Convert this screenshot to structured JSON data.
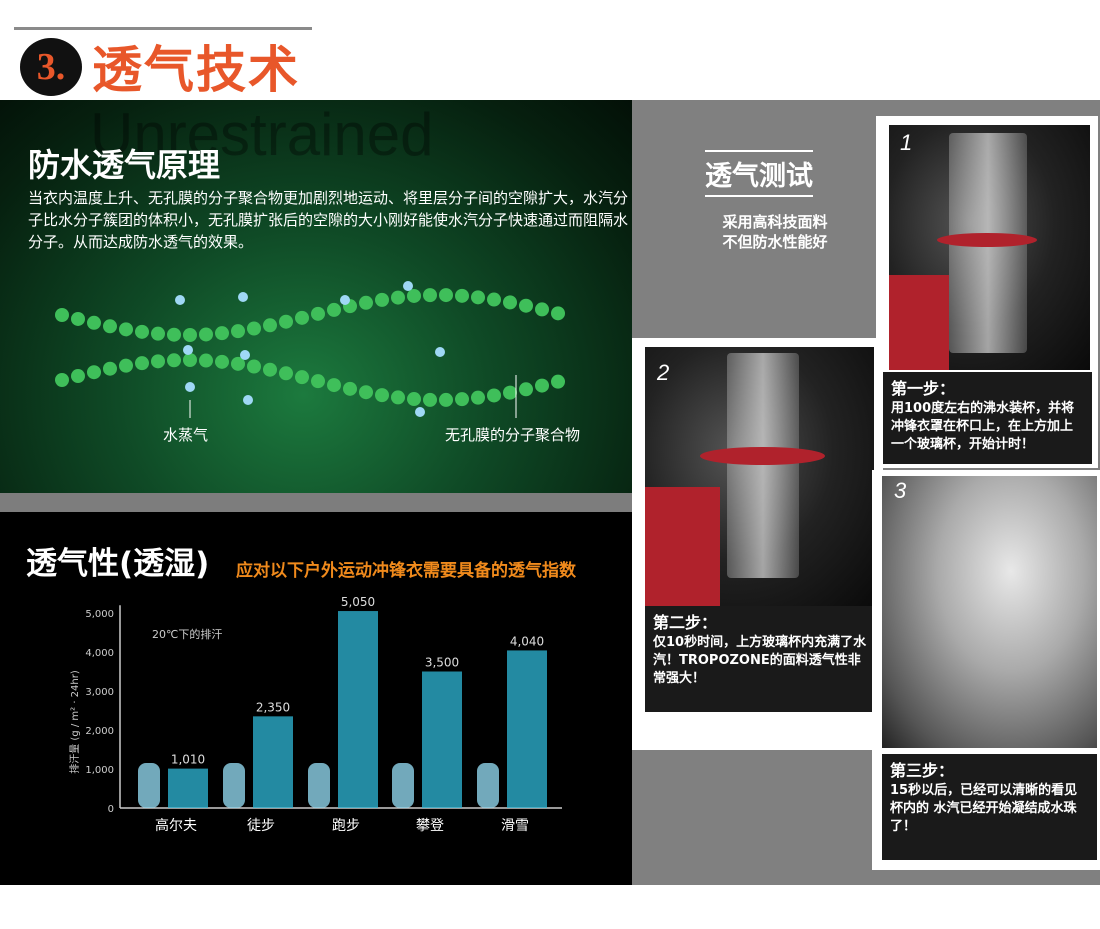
{
  "header": {
    "number": "3.",
    "title": "透气技术"
  },
  "principle": {
    "watermark": "Unrestrained",
    "title": "防水透气原理",
    "description": "当衣内温度上升、无孔膜的分子聚合物更加剧烈地运动、将里层分子间的空隙扩大，水汽分子比水分子簇团的体积小，无孔膜扩张后的空隙的大小刚好能使水汽分子快速通过而阻隔水分子。从而达成防水透气的效果。",
    "label_vapor": "水蒸气",
    "label_polymer": "无孔膜的分子聚合物"
  },
  "breathability": {
    "title": "透气性(透湿)",
    "subtitle": "应对以下户外运动冲锋衣需要具备的透气指数"
  },
  "chart_data": {
    "type": "bar",
    "title": "",
    "annotation": "20℃下的排汗",
    "ylabel": "排汗量 (g / m² · 24hr)",
    "xlabel": "",
    "categories": [
      "高尔夫",
      "徒步",
      "跑步",
      "攀登",
      "滑雪"
    ],
    "values": [
      1010,
      2350,
      5050,
      3500,
      4040
    ],
    "value_labels": [
      "1,010",
      "2,350",
      "5,050",
      "3,500",
      "4,040"
    ],
    "yticks": [
      "0",
      "1,000",
      "2,000",
      "3,000",
      "4,000",
      "5,000"
    ],
    "ylim": [
      0,
      5000
    ],
    "grid": false,
    "bar_color": "#2fb8d8"
  },
  "test": {
    "title": "透气测试",
    "subtitle_line1": "采用高科技面料",
    "subtitle_line2": "不但防水性能好",
    "steps": [
      {
        "num": "1",
        "heading": "第一步：",
        "text": "用100度左右的沸水装杯，并将冲锋衣罩在杯口上，在上方加上一个玻璃杯，开始计时！"
      },
      {
        "num": "2",
        "heading": "第二步：",
        "text": "仅10秒时间，上方玻璃杯内充满了水汽！TROPOZONE的面料透气性非常强大！"
      },
      {
        "num": "3",
        "heading": "第三步：",
        "text": "15秒以后，已经可以清晰的看见杯内的 水汽已经开始凝结成水珠了！"
      }
    ]
  },
  "colors": {
    "accent": "#e8572a",
    "subtitle": "#f08a1c",
    "bar": "#2fb8d8"
  }
}
